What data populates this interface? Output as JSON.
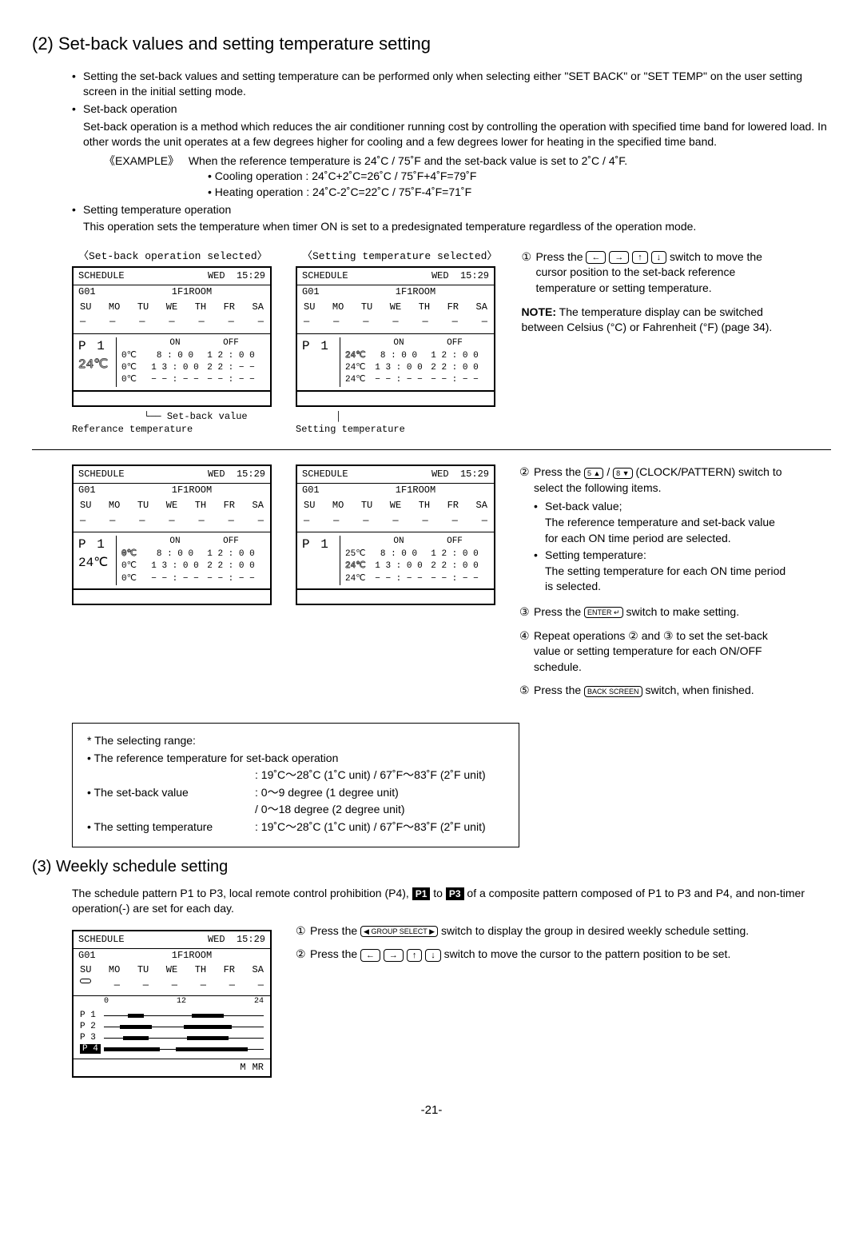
{
  "section2": {
    "title": "(2) Set-back values and setting temperature setting",
    "p1": "Setting the set-back values and setting temperature can be performed only when selecting either \"SET BACK\" or \"SET TEMP\" on the user setting screen in the initial setting mode.",
    "p2_title": "Set-back operation",
    "p2": "Set-back operation is a method which reduces the air conditioner running cost by controlling the operation with specified time band for lowered load. In other words the unit operates at a few degrees higher for cooling and a few degrees lower for heating in the specified time band.",
    "example_label": "《EXAMPLE》",
    "example_text": "When the reference temperature is 24˚C / 75˚F and the set-back value is set to 2˚C / 4˚F.",
    "example_cool": "• Cooling operation : 24˚C+2˚C=26˚C / 75˚F+4˚F=79˚F",
    "example_heat": "• Heating operation : 24˚C-2˚C=22˚C / 75˚F-4˚F=71˚F",
    "p3_title": "Setting temperature operation",
    "p3": "This operation sets the temperature when timer ON is set to a predesignated temperature regardless of the operation mode."
  },
  "lcd": {
    "title_setback": "〈Set-back operation selected〉",
    "title_settemp": "〈Setting temperature selected〉",
    "schedule": "SCHEDULE",
    "wed": "WED",
    "time": "15:29",
    "g01": "G01",
    "room": "1F1ROOM",
    "days": [
      "SU",
      "MO",
      "TU",
      "WE",
      "TH",
      "FR",
      "SA"
    ],
    "p1": "P 1",
    "temp24": "24℃",
    "on": "ON",
    "off": "OFF",
    "t0c": "0℃",
    "t24c": "24℃",
    "t25c": "25℃",
    "time1": "8 : 0 0",
    "time2": "1 2 : 0 0",
    "time3": "1 3 : 0 0",
    "time4": "2 2 : − −",
    "time5": "2 2 : 0 0",
    "dashes": "− − : − −",
    "anno_ref": "Referance temperature",
    "anno_sbv": "Set-back value",
    "anno_st": "Setting temperature"
  },
  "instructions": {
    "step1_a": "Press the",
    "step1_b": "switch to move the cursor position to the set-back reference temperature or setting temperature.",
    "note_label": "NOTE:",
    "note": "The temperature display can be switched between Celsius (°C) or Fahrenheit (°F) (page 34).",
    "step2_a": "Press the",
    "step2_b": "(CLOCK/PATTERN) switch to select the following items.",
    "step2_sb_t": "Set-back value;",
    "step2_sb": "The reference temperature and set-back value for each ON time period are selected.",
    "step2_st_t": "Setting temperature:",
    "step2_st": "The setting temperature for each ON time period is selected.",
    "step3_a": "Press the",
    "step3_b": "switch to make setting.",
    "step4": "Repeat operations ② and ③ to set the set-back value or setting temperature for each ON/OFF schedule.",
    "step5_a": "Press the",
    "step5_b": "switch, when finished."
  },
  "range": {
    "title": "* The selecting range:",
    "l1": "• The reference temperature for set-back operation",
    "l1v": ": 19˚C～28˚C (1˚C unit) / 67˚F～83˚F (2˚F unit)",
    "l2": "• The set-back value",
    "l2v": ": 0～9 degree (1 degree unit)",
    "l2v2": "/ 0～18 degree (2 degree unit)",
    "l3": "• The setting temperature",
    "l3v": ": 19˚C～28˚C (1˚C unit) / 67˚F～83˚F (2˚F unit)"
  },
  "section3": {
    "title": "(3) Weekly schedule setting",
    "p1a": "The schedule pattern P1 to P3, local remote control prohibition (P4),",
    "p1b": "to",
    "p1c": "of a composite pattern composed of P1 to P3 and P4, and non-timer operation(-) are set for each day.",
    "chip1": "P1",
    "chip2": "P3",
    "step1_a": "Press the",
    "step1_b": "switch to display the group in desired weekly schedule setting.",
    "step2_a": "Press the",
    "step2_b": "switch to move the cursor to the pattern position to be set.",
    "patterns": [
      "P 1",
      "P 2",
      "P 3"
    ],
    "p4": "P 4",
    "scale": [
      "0",
      "12",
      "24"
    ],
    "foot_m": "M",
    "foot_mr": "MR"
  },
  "btn": {
    "left": "←",
    "right": "→",
    "up": "↑",
    "down": "↓",
    "tup": "5 ▲",
    "tdown": "8 ▼",
    "enter": "ENTER ↵",
    "back": "BACK SCREEN",
    "group": "◀ GROUP SELECT ▶"
  },
  "page": "-21-",
  "bars": {
    "p1": [
      [
        15,
        25
      ],
      [
        55,
        75
      ]
    ],
    "p2": [
      [
        10,
        30
      ],
      [
        50,
        80
      ]
    ],
    "p3": [
      [
        12,
        28
      ],
      [
        52,
        78
      ]
    ],
    "p4": [
      [
        0,
        35
      ],
      [
        45,
        90
      ]
    ]
  }
}
